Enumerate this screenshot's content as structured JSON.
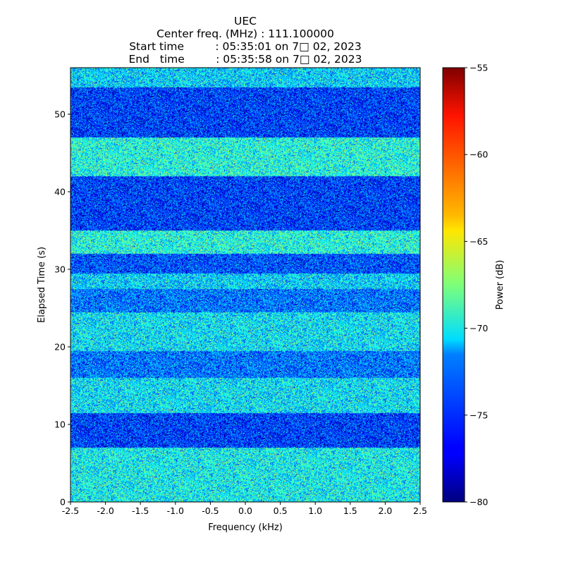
{
  "chart_data": {
    "type": "heatmap",
    "title_lines": [
      "UEC",
      "Center freq. (MHz) : 111.100000",
      "Start time         : 05:35:01 on 7□ 02, 2023",
      "End   time         : 05:35:58 on 7□ 02, 2023"
    ],
    "xlabel": "Frequency (kHz)",
    "ylabel": "Elapsed Time (s)",
    "xlim": [
      -2.5,
      2.5
    ],
    "ylim": [
      0,
      56
    ],
    "xticks": [
      -2.5,
      -2.0,
      -1.5,
      -1.0,
      -0.5,
      0.0,
      0.5,
      1.0,
      1.5,
      2.0,
      2.5
    ],
    "xtick_labels": [
      "-2.5",
      "-2.0",
      "-1.5",
      "-1.0",
      "-0.5",
      "0.0",
      "0.5",
      "1.0",
      "1.5",
      "2.0",
      "2.5"
    ],
    "yticks": [
      0,
      10,
      20,
      30,
      40,
      50
    ],
    "yticks_labels": [
      "0",
      "10",
      "20",
      "30",
      "40",
      "50"
    ],
    "colorbar": {
      "label": "Power (dB)",
      "range": [
        -80,
        -55
      ],
      "ticks": [
        -80,
        -75,
        -70,
        -65,
        -60,
        -55
      ],
      "tick_labels": [
        "−80",
        "−75",
        "−70",
        "−65",
        "−60",
        "−55"
      ],
      "colormap": "jet"
    },
    "grid": false,
    "bands": [
      {
        "t0": 0,
        "t1": 7,
        "mean_db": -70.5
      },
      {
        "t0": 7,
        "t1": 11.5,
        "mean_db": -75.5
      },
      {
        "t0": 11.5,
        "t1": 16,
        "mean_db": -71.0
      },
      {
        "t0": 16,
        "t1": 19.5,
        "mean_db": -74.0
      },
      {
        "t0": 19.5,
        "t1": 24.5,
        "mean_db": -71.0
      },
      {
        "t0": 24.5,
        "t1": 27.5,
        "mean_db": -74.0
      },
      {
        "t0": 27.5,
        "t1": 29.5,
        "mean_db": -71.5
      },
      {
        "t0": 29.5,
        "t1": 32,
        "mean_db": -75.0
      },
      {
        "t0": 32,
        "t1": 35,
        "mean_db": -70.0
      },
      {
        "t0": 35,
        "t1": 42,
        "mean_db": -75.5
      },
      {
        "t0": 42,
        "t1": 47,
        "mean_db": -70.0
      },
      {
        "t0": 47,
        "t1": 53.5,
        "mean_db": -75.5
      },
      {
        "t0": 53.5,
        "t1": 56,
        "mean_db": -71.5
      }
    ]
  }
}
